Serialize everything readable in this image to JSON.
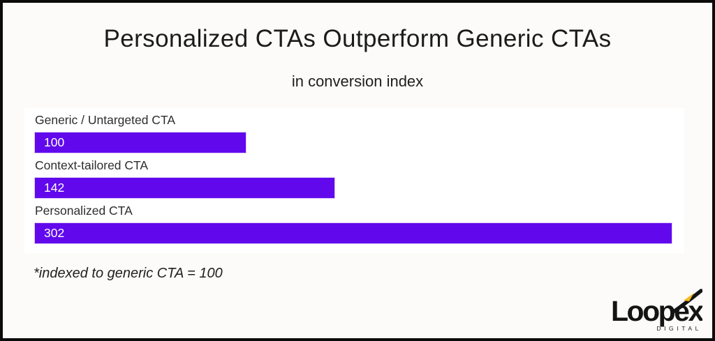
{
  "page": {
    "title": "Personalized CTAs Outperform Generic CTAs",
    "subtitle": "in conversion index",
    "footnote": "*indexed to generic CTA = 100"
  },
  "chart_data": {
    "type": "bar",
    "orientation": "horizontal",
    "title": "Personalized CTAs Outperform Generic CTAs",
    "subtitle": "in conversion index",
    "categories": [
      "Generic / Untargeted CTA",
      "Context-tailored CTA",
      "Personalized CTA"
    ],
    "values": [
      100,
      142,
      302
    ],
    "xlim": [
      0,
      302
    ],
    "value_label_position": "inside-left",
    "grid": false,
    "legend": false,
    "note": "*indexed to generic CTA = 100"
  },
  "colors": {
    "bar": "#6109EC",
    "bar_value_text": "#FFFFFF",
    "text": "#1B1B1B",
    "background": "#FCFBF9",
    "panel": "#FFFFFF",
    "frame_border": "#0B0B0B",
    "logo_black": "#141414",
    "logo_accent_yellow": "#F5B81C"
  },
  "logo": {
    "wordmark": "Loopex",
    "tagline": "DIGITAL"
  }
}
